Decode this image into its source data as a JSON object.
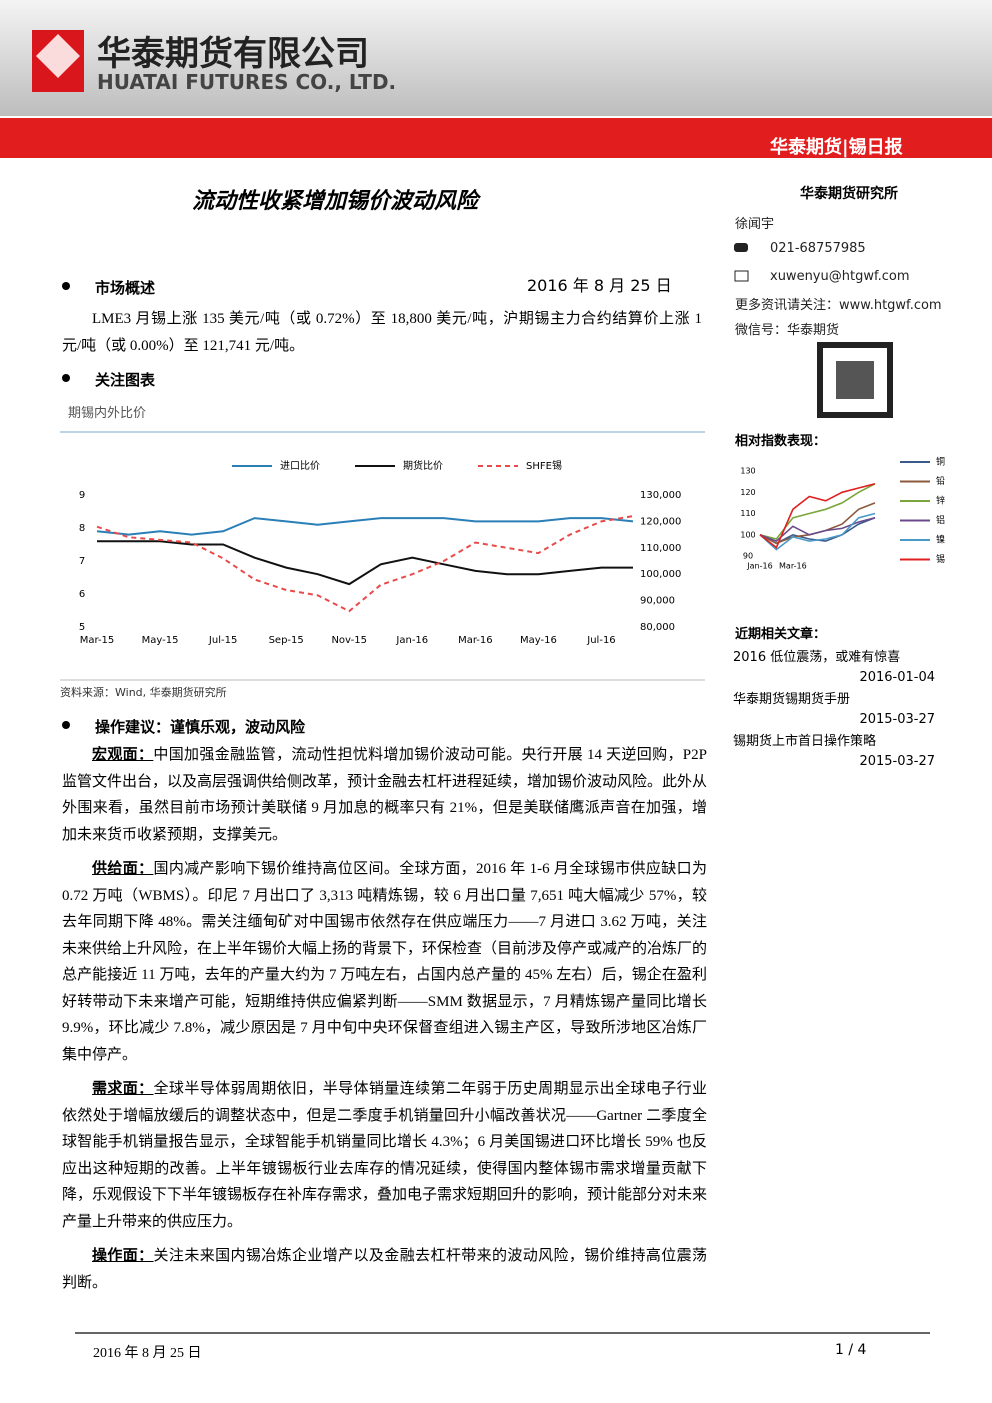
{
  "header": {
    "company_cn": "华泰期货有限公司",
    "company_en": "HUATAI FUTURES CO., LTD.",
    "banner": "华泰期货|锡日报"
  },
  "title": "流动性收紧增加锡价波动风险",
  "date": "2016 年 8 月 25 日",
  "sections": [
    {
      "heading": "市场概述",
      "paragraphs": [
        {
          "text": "LME3 月锡上涨 135 美元/吨（或 0.72%）至 18,800 美元/吨，沪期锡主力合约结算价上涨 1 元/吨（或 0.00%）至 121,741 元/吨。"
        }
      ]
    },
    {
      "heading": "关注图表",
      "caption": "期锡内外比价",
      "source": "资料来源：Wind, 华泰期货研究所"
    },
    {
      "heading": "操作建议：谨慎乐观，波动风险",
      "paragraphs": [
        {
          "lead": "宏观面：",
          "text": "中国加强金融监管，流动性担忧料增加锡价波动可能。央行开展 14 天逆回购，P2P 监管文件出台，以及高层强调供给侧改革，预计金融去杠杆进程延续，增加锡价波动风险。此外从外围来看，虽然目前市场预计美联储 9 月加息的概率只有 21%，但是美联储鹰派声音在加强，增加未来货币收紧预期，支撑美元。"
        },
        {
          "lead": "供给面：",
          "text": "国内减产影响下锡价维持高位区间。全球方面，2016 年 1-6 月全球锡市供应缺口为 0.72 万吨（WBMS）。印尼 7 月出口了 3,313 吨精炼锡，较 6 月出口量 7,651 吨大幅减少 57%，较去年同期下降 48%。需关注缅甸矿对中国锡市依然存在供应端压力——7 月进口 3.62 万吨，关注未来供给上升风险，在上半年锡价大幅上扬的背景下，环保检查（目前涉及停产或减产的冶炼厂的总产能接近 11 万吨，去年的产量大约为 7 万吨左右，占国内总产量的 45% 左右）后，锡企在盈利好转带动下未来增产可能，短期维持供应偏紧判断——SMM 数据显示，7 月精炼锡产量同比增长 9.9%，环比减少 7.8%，减少原因是 7 月中旬中央环保督查组进入锡主产区，导致所涉地区冶炼厂集中停产。"
        },
        {
          "lead": "需求面：",
          "text": "全球半导体弱周期依旧，半导体销量连续第二年弱于历史周期显示出全球电子行业依然处于增幅放缓后的调整状态中，但是二季度手机销量回升小幅改善状况——Gartner 二季度全球智能手机销量报告显示，全球智能手机销量同比增长 4.3%；6 月美国锡进口环比增长 59% 也反应出这种短期的改善。上半年镀锡板行业去库存的情况延续，使得国内整体锡市需求增量贡献下降，乐观假设下下半年镀锡板存在补库存需求，叠加电子需求短期回升的影响，预计能部分对未来产量上升带来的供应压力。"
        },
        {
          "lead": "操作面：",
          "text": "关注未来国内锡冶炼企业增产以及金融去杠杆带来的波动风险，锡价维持高位震荡判断。"
        }
      ]
    }
  ],
  "sidebar": {
    "org": "华泰期货研究所",
    "analyst": "徐闻宇",
    "phone": "021-68757985",
    "email": "xuwenyu@htgwf.com",
    "website": "更多资讯请关注：www.htgwf.com",
    "wechat": "微信号：华泰期货",
    "perf_title": "相对指数表现：",
    "articles_title": "近期相关文章：",
    "articles": [
      {
        "title": "2016 低位震荡，或难有惊喜",
        "date": "2016-01-04"
      },
      {
        "title": "华泰期货锡期货手册",
        "date": "2015-03-27"
      },
      {
        "title": "锡期货上市首日操作策略",
        "date": "2015-03-27"
      }
    ]
  },
  "footer": {
    "date": "2016 年 8 月 25 日",
    "page": "1 / 4"
  },
  "chart_data": [
    {
      "type": "line",
      "categories": [
        "Mar-15",
        null,
        "May-15",
        null,
        "Jul-15",
        null,
        "Sep-15",
        null,
        "Nov-15",
        null,
        "Jan-16",
        null,
        "Mar-16",
        null,
        "May-16",
        null,
        "Jul-16",
        null
      ],
      "ylim": [
        5,
        9
      ],
      "yticks": [
        5,
        6,
        7,
        8,
        9
      ],
      "y2lim": [
        80000,
        130000
      ],
      "y2ticks": [
        {
          "value": 80000,
          "label": "80,000"
        },
        {
          "value": 90000,
          "label": "90,000"
        },
        {
          "value": 100000,
          "label": "100,000"
        },
        {
          "value": 110000,
          "label": "110,000"
        },
        {
          "value": 120000,
          "label": "120,000"
        },
        {
          "value": 130000,
          "label": "130,000"
        }
      ],
      "series": [
        {
          "name": "进口比价",
          "color": "#2a7fb8",
          "values": [
            7.9,
            7.8,
            7.9,
            7.8,
            7.9,
            8.3,
            8.2,
            8.1,
            8.2,
            8.3,
            8.3,
            8.3,
            8.2,
            8.2,
            8.2,
            8.3,
            8.3,
            8.2
          ]
        },
        {
          "name": "期货比价",
          "color": "#111111",
          "values": [
            7.6,
            7.6,
            7.6,
            7.5,
            7.5,
            7.1,
            6.8,
            6.6,
            6.3,
            6.9,
            7.1,
            6.9,
            6.7,
            6.6,
            6.6,
            6.7,
            6.8,
            6.8
          ]
        },
        {
          "name": "SHFE锡",
          "color": "#e84a4a",
          "dashed": true,
          "axis": "y2",
          "values": [
            118000,
            114000,
            113000,
            112000,
            106000,
            98000,
            94000,
            92000,
            86000,
            96000,
            100000,
            105000,
            112000,
            110000,
            108000,
            115000,
            120000,
            122000
          ]
        }
      ]
    },
    {
      "type": "line",
      "categories": [
        "Jan-16",
        null,
        "Mar-16",
        null,
        null,
        null,
        null,
        null
      ],
      "ylim": [
        90,
        130
      ],
      "yticks": [
        90,
        100,
        110,
        120,
        130
      ],
      "series": [
        {
          "name": "铜",
          "color": "#3a5a8c",
          "values": [
            100,
            96,
            100,
            98,
            97,
            100,
            105,
            108
          ]
        },
        {
          "name": "铅",
          "color": "#8b5a3c",
          "values": [
            100,
            96,
            99,
            100,
            102,
            105,
            112,
            115
          ]
        },
        {
          "name": "锌",
          "color": "#7aa63c",
          "values": [
            100,
            98,
            108,
            110,
            112,
            115,
            120,
            124
          ]
        },
        {
          "name": "铝",
          "color": "#6a4a8c",
          "values": [
            100,
            97,
            104,
            100,
            102,
            103,
            106,
            108
          ]
        },
        {
          "name": "镍",
          "color": "#4a9ac8",
          "values": [
            100,
            93,
            99,
            97,
            98,
            100,
            108,
            110
          ]
        },
        {
          "name": "锡",
          "color": "#e02020",
          "values": [
            100,
            94,
            112,
            118,
            116,
            120,
            122,
            124
          ]
        }
      ]
    }
  ]
}
